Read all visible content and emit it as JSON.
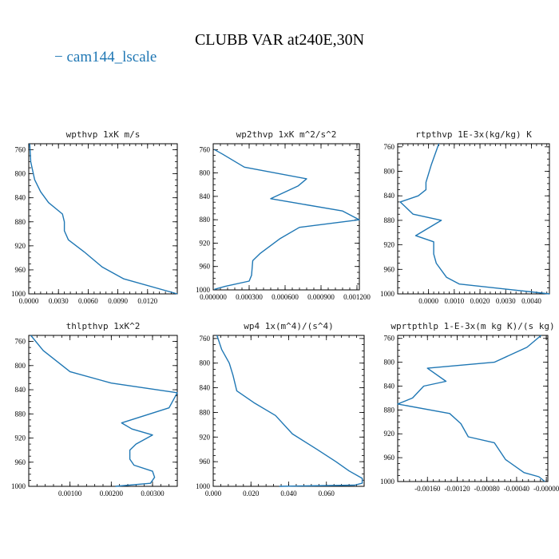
{
  "figure": {
    "title": "CLUBB VAR at240E,30N",
    "legend": [
      {
        "label": "cam144_lscale",
        "color": "#1f77b4"
      }
    ]
  },
  "chart_data": [
    {
      "type": "line",
      "title": "wpthvp  1xK m/s",
      "series_name": "cam144_lscale",
      "xlim": [
        0,
        0.015
      ],
      "ylim": [
        1000,
        750
      ],
      "xticks": [
        0.0,
        0.003,
        0.006,
        0.009,
        0.012
      ],
      "xtick_labels": [
        "0.0000",
        "0.0030",
        "0.0060",
        "0.0090",
        "0.0120"
      ],
      "yticks": [
        760,
        800,
        840,
        880,
        920,
        960,
        1000
      ],
      "x": [
        0.0001,
        0.0002,
        0.0006,
        0.0012,
        0.002,
        0.0034,
        0.0036,
        0.0036,
        0.004,
        0.0056,
        0.0074,
        0.0096,
        0.015
      ],
      "y": [
        750,
        780,
        810,
        830,
        848,
        867,
        880,
        895,
        910,
        930,
        955,
        975,
        1000
      ]
    },
    {
      "type": "line",
      "title": "wp2thvp  1xK m^2/s^2",
      "series_name": "cam144_lscale",
      "xlim": [
        0,
        0.00122
      ],
      "ylim": [
        1000,
        750
      ],
      "xticks": [
        0.0,
        0.0003,
        0.0006,
        0.0009,
        0.0012
      ],
      "xtick_labels": [
        "0.000000",
        "0.000300",
        "0.000600",
        "0.000900",
        "0.001200"
      ],
      "yticks": [
        760,
        800,
        840,
        880,
        920,
        960,
        1000
      ],
      "x": [
        1e-05,
        8e-05,
        0.00026,
        0.00078,
        0.00071,
        0.00048,
        0.00108,
        0.00122,
        0.00072,
        0.00056,
        0.00039,
        0.00033,
        0.00032,
        0.0003,
        0.0001,
        1e-05
      ],
      "y": [
        760,
        768,
        790,
        810,
        822,
        844,
        865,
        880,
        893,
        912,
        938,
        950,
        975,
        985,
        994,
        999
      ]
    },
    {
      "type": "line",
      "title": "rtpthvp  1E-3x(kg/kg) K",
      "series_name": "cam144_lscale",
      "xlim": [
        -0.0012,
        0.0047
      ],
      "ylim": [
        1000,
        755
      ],
      "xticks": [
        0.0,
        0.001,
        0.002,
        0.003,
        0.004
      ],
      "xtick_labels": [
        "0.0000",
        "0.0010",
        "0.0020",
        "0.0030",
        "0.0040"
      ],
      "yticks": [
        760,
        800,
        840,
        880,
        920,
        960,
        1000
      ],
      "x": [
        0.0004,
        0.0001,
        -0.0001,
        -0.0001,
        -0.0004,
        -0.0011,
        -0.0006,
        0.0005,
        -0.0005,
        0.0002,
        0.0002,
        0.0003,
        0.0007,
        0.0012,
        0.0047
      ],
      "y": [
        755,
        790,
        818,
        830,
        840,
        850,
        870,
        880,
        905,
        915,
        935,
        950,
        973,
        984,
        1000
      ]
    },
    {
      "type": "line",
      "title": "thlpthvp  1xK^2",
      "series_name": "cam144_lscale",
      "xlim": [
        0,
        0.0036
      ],
      "ylim": [
        1000,
        750
      ],
      "xticks": [
        0.001,
        0.002,
        0.003
      ],
      "xtick_labels": [
        "0.00100",
        "0.00200",
        "0.00300"
      ],
      "yticks": [
        760,
        800,
        840,
        880,
        920,
        960,
        1000
      ],
      "x": [
        5e-05,
        0.00035,
        0.001,
        0.002,
        0.0036,
        0.0034,
        0.00225,
        0.0025,
        0.003,
        0.0026,
        0.00245,
        0.00245,
        0.00255,
        0.003,
        0.00305,
        0.00295,
        0.0021
      ],
      "y": [
        750,
        775,
        810,
        829,
        845,
        870,
        895,
        905,
        915,
        930,
        940,
        955,
        965,
        975,
        985,
        995,
        1000
      ]
    },
    {
      "type": "line",
      "title": "wp4  1x(m^4)/(s^4)",
      "series_name": "cam144_lscale",
      "xlim": [
        0,
        0.08
      ],
      "ylim": [
        1000,
        755
      ],
      "xticks": [
        0.0,
        0.02,
        0.04,
        0.06
      ],
      "xtick_labels": [
        "0.000",
        "0.020",
        "0.040",
        "0.060"
      ],
      "yticks": [
        760,
        800,
        840,
        880,
        920,
        960,
        1000
      ],
      "x": [
        0.002,
        0.0045,
        0.0085,
        0.0105,
        0.0125,
        0.022,
        0.033,
        0.042,
        0.055,
        0.065,
        0.072,
        0.079,
        0.079,
        0.075,
        0.035
      ],
      "y": [
        755,
        778,
        800,
        820,
        845,
        865,
        885,
        915,
        940,
        960,
        975,
        987,
        995,
        998,
        1000
      ]
    },
    {
      "type": "line",
      "title": "wprtpthlp  1-E-3x(m kg K)/(s kg)",
      "series_name": "cam144_lscale",
      "xlim": [
        -0.002,
        2e-05
      ],
      "ylim": [
        1000,
        755
      ],
      "xticks": [
        -0.0016,
        -0.0012,
        -0.0008,
        -0.0004,
        0.0
      ],
      "xtick_labels": [
        "-0.00160",
        "-0.00120",
        "-0.00080",
        "-0.00040",
        "-0.00000"
      ],
      "yticks": [
        760,
        800,
        840,
        880,
        920,
        960,
        1000
      ],
      "x": [
        -7e-05,
        -0.00026,
        -0.0007,
        -0.0016,
        -0.00135,
        -0.00165,
        -0.0018,
        -0.002,
        -0.0013,
        -0.00115,
        -0.00105,
        -0.0007,
        -0.00055,
        -0.0003,
        -0.0001,
        -2e-05
      ],
      "y": [
        755,
        775,
        800,
        810,
        832,
        840,
        860,
        870,
        886,
        903,
        925,
        935,
        963,
        985,
        992,
        1000
      ]
    }
  ]
}
